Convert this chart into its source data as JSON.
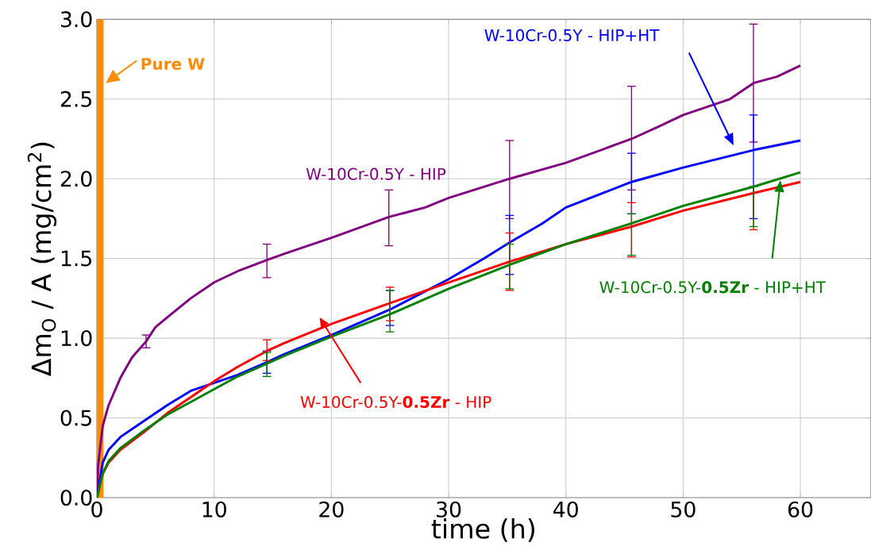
{
  "chart_data": {
    "type": "line",
    "xlabel": "time (h)",
    "ylabel": "Δm$_{O}$ / A (mg/cm$^{2}$)",
    "xlim": [
      0,
      66
    ],
    "ylim": [
      0,
      3.0
    ],
    "xticks": [
      0,
      10,
      20,
      30,
      40,
      50,
      60
    ],
    "yticks": [
      {
        "value": 0,
        "label": "0.0"
      },
      0.5,
      {
        "value": 1,
        "label": "1.0"
      },
      1.5,
      {
        "value": 2,
        "label": "2.0"
      },
      2.5,
      {
        "value": 3,
        "label": "3.0"
      }
    ],
    "grid": true,
    "marker": "none",
    "line_style": "solid",
    "series": [
      {
        "name": "Pure W",
        "color": "#ff8c00",
        "x": [
          0.3,
          0.3
        ],
        "values": [
          0,
          3.0
        ]
      },
      {
        "name": "W-10Cr-0.5Y - HIP",
        "color": "#800080",
        "x": [
          0,
          0.1,
          0.5,
          1,
          2,
          3,
          4.2,
          5,
          6,
          8,
          10,
          12,
          14.5,
          16,
          20,
          24.9,
          28,
          30,
          35.2,
          40,
          45.6,
          48,
          50,
          54,
          56,
          58,
          60
        ],
        "values": [
          0,
          0.2,
          0.45,
          0.58,
          0.75,
          0.88,
          0.98,
          1.07,
          1.13,
          1.25,
          1.35,
          1.42,
          1.49,
          1.53,
          1.63,
          1.76,
          1.82,
          1.88,
          2.0,
          2.1,
          2.25,
          2.33,
          2.4,
          2.5,
          2.6,
          2.64,
          2.71
        ],
        "errors": [
          null,
          null,
          null,
          null,
          null,
          null,
          [
            0.94,
            1.02
          ],
          null,
          null,
          null,
          null,
          null,
          [
            1.38,
            1.59
          ],
          null,
          null,
          [
            1.58,
            1.93
          ],
          null,
          null,
          [
            1.75,
            2.24
          ],
          null,
          [
            1.93,
            2.58
          ],
          null,
          null,
          null,
          [
            2.23,
            2.97
          ],
          null,
          null
        ]
      },
      {
        "name": "W-10Cr-0.5Y - HIP+HT",
        "color": "#0000ff",
        "x": [
          0,
          0.5,
          1,
          2,
          4,
          6,
          8,
          10,
          12,
          14.5,
          16,
          20,
          25,
          30,
          33,
          35.2,
          38,
          40,
          45.6,
          50,
          56,
          60
        ],
        "values": [
          0,
          0.22,
          0.3,
          0.38,
          0.48,
          0.58,
          0.67,
          0.72,
          0.77,
          0.85,
          0.9,
          1.02,
          1.18,
          1.37,
          1.5,
          1.6,
          1.72,
          1.82,
          1.98,
          2.07,
          2.18,
          2.24
        ],
        "errors": [
          null,
          null,
          null,
          null,
          null,
          null,
          null,
          null,
          null,
          [
            0.78,
            0.92
          ],
          null,
          null,
          [
            1.08,
            1.3
          ],
          null,
          null,
          [
            1.4,
            1.77
          ],
          null,
          null,
          [
            1.78,
            2.16
          ],
          null,
          [
            1.75,
            2.4
          ],
          null
        ]
      },
      {
        "name": "W-10Cr-0.5Y-**0.5Zr** - HIP",
        "color": "#ff0000",
        "x": [
          0,
          0.5,
          1,
          2,
          4,
          6,
          8,
          10,
          12,
          14.5,
          16,
          20,
          25,
          30,
          35.2,
          40,
          45.6,
          50,
          56,
          60
        ],
        "values": [
          0,
          0.15,
          0.22,
          0.3,
          0.41,
          0.53,
          0.63,
          0.73,
          0.82,
          0.92,
          0.97,
          1.09,
          1.22,
          1.35,
          1.48,
          1.59,
          1.7,
          1.8,
          1.91,
          1.98
        ],
        "errors": [
          null,
          null,
          null,
          null,
          null,
          null,
          null,
          null,
          null,
          [
            0.86,
            0.99
          ],
          null,
          null,
          [
            1.11,
            1.32
          ],
          null,
          [
            1.3,
            1.66
          ],
          null,
          [
            1.51,
            1.85
          ],
          null,
          [
            1.68,
            1.95
          ],
          null
        ]
      },
      {
        "name": "W-10Cr-0.5Y-**0.5Zr** - HIP+HT",
        "color": "#008000",
        "x": [
          0,
          0.5,
          1,
          2,
          4,
          6,
          8,
          10,
          12,
          14.5,
          16,
          20,
          25,
          30,
          35.2,
          40,
          45.6,
          50,
          56,
          60
        ],
        "values": [
          0,
          0.15,
          0.23,
          0.31,
          0.42,
          0.52,
          0.6,
          0.68,
          0.76,
          0.84,
          0.89,
          1.01,
          1.15,
          1.31,
          1.46,
          1.59,
          1.72,
          1.83,
          1.95,
          2.04
        ],
        "errors": [
          null,
          null,
          null,
          null,
          null,
          null,
          null,
          null,
          null,
          [
            0.76,
            0.91
          ],
          null,
          null,
          [
            1.04,
            1.3
          ],
          null,
          [
            1.31,
            1.59
          ],
          null,
          [
            1.52,
            1.78
          ],
          null,
          [
            1.7,
            1.95
          ],
          null
        ]
      }
    ]
  }
}
